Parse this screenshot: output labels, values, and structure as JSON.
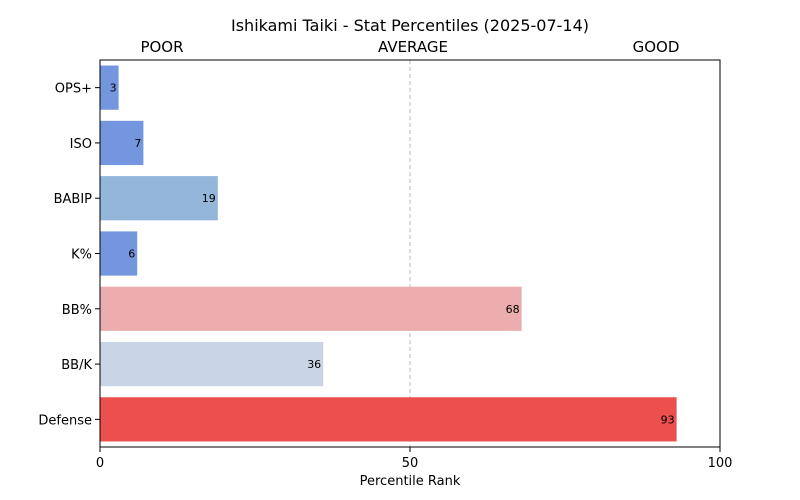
{
  "chart_data": {
    "type": "bar",
    "orientation": "horizontal",
    "title": "Ishikami Taiki - Stat Percentiles (2025-07-14)",
    "xlabel": "Percentile Rank",
    "ylabel": "",
    "xlim": [
      0,
      100
    ],
    "xticks": [
      "0",
      "50",
      "100"
    ],
    "zone_labels": [
      "POOR",
      "AVERAGE",
      "GOOD"
    ],
    "reference_line": 50,
    "grid": false,
    "categories": [
      "OPS+",
      "ISO",
      "BABIP",
      "K%",
      "BB%",
      "BB/K",
      "Defense"
    ],
    "values": [
      3,
      7,
      19,
      6,
      68,
      36,
      93
    ],
    "colors": [
      "#7496df",
      "#7496df",
      "#94b6db",
      "#7496df",
      "#ebadad",
      "#c8d5e7",
      "#ed4e4e"
    ]
  }
}
